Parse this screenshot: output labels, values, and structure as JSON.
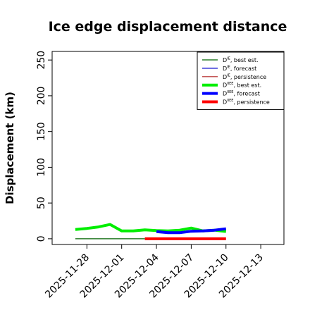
{
  "chart_data": {
    "type": "line",
    "title": "Ice edge displacement distance",
    "xlabel": "",
    "ylabel": "Displacement (km)",
    "xlim": [
      "2025-11-25",
      "2025-12-15"
    ],
    "ylim": [
      -8,
      262
    ],
    "y_ticks": [
      0,
      50,
      100,
      150,
      200,
      250
    ],
    "x_ticks": [
      "2025-11-28",
      "2025-12-01",
      "2025-12-04",
      "2025-12-07",
      "2025-12-10",
      "2025-12-13"
    ],
    "highlighted_x_tick": "2025-12-04",
    "highlight_color": "#228b22",
    "grid": false,
    "legend_position": "top-right",
    "series": [
      {
        "name": "D^IE, best est.",
        "legend_base": "D",
        "legend_sup": "IE",
        "legend_suffix": ", best est.",
        "color": "#006400",
        "width": 1.2,
        "x": [
          "2025-11-27",
          "2025-12-03"
        ],
        "y": [
          0,
          0
        ]
      },
      {
        "name": "D^IE, forecast",
        "legend_base": "D",
        "legend_sup": "IE",
        "legend_suffix": ", forecast",
        "color": "#0000cd",
        "width": 1.2,
        "x": [],
        "y": []
      },
      {
        "name": "D^IE, persistence",
        "legend_base": "D",
        "legend_sup": "IE",
        "legend_suffix": ", persistence",
        "color": "#b22222",
        "width": 1.2,
        "x": [],
        "y": []
      },
      {
        "name": "D^IIEE, best est.",
        "legend_base": "D",
        "legend_sup": "IIEE",
        "legend_suffix": ", best est.",
        "color": "#00ee00",
        "width": 4,
        "x": [
          "2025-11-27",
          "2025-11-28",
          "2025-11-29",
          "2025-11-30",
          "2025-12-01",
          "2025-12-02",
          "2025-12-03",
          "2025-12-04",
          "2025-12-05",
          "2025-12-06",
          "2025-12-07",
          "2025-12-08",
          "2025-12-09",
          "2025-12-10"
        ],
        "y": [
          13,
          14.5,
          16.5,
          20,
          11,
          11,
          12.5,
          11.5,
          11,
          12,
          15,
          11,
          12,
          10
        ]
      },
      {
        "name": "D^IIEE, forecast",
        "legend_base": "D",
        "legend_sup": "IIEE",
        "legend_suffix": ", forecast",
        "color": "#0000ff",
        "width": 4,
        "x": [
          "2025-12-04",
          "2025-12-05",
          "2025-12-06",
          "2025-12-07",
          "2025-12-08",
          "2025-12-09",
          "2025-12-10"
        ],
        "y": [
          10,
          8.5,
          8.5,
          10.5,
          11,
          12,
          14
        ]
      },
      {
        "name": "D^IIEE, persistence",
        "legend_base": "D",
        "legend_sup": "IIEE",
        "legend_suffix": ", persistence",
        "color": "#ff0000",
        "width": 4,
        "x": [
          "2025-12-03",
          "2025-12-04",
          "2025-12-05",
          "2025-12-06",
          "2025-12-07",
          "2025-12-08",
          "2025-12-09",
          "2025-12-10"
        ],
        "y": [
          0,
          0,
          0,
          0,
          0,
          0,
          0,
          0
        ]
      }
    ]
  }
}
